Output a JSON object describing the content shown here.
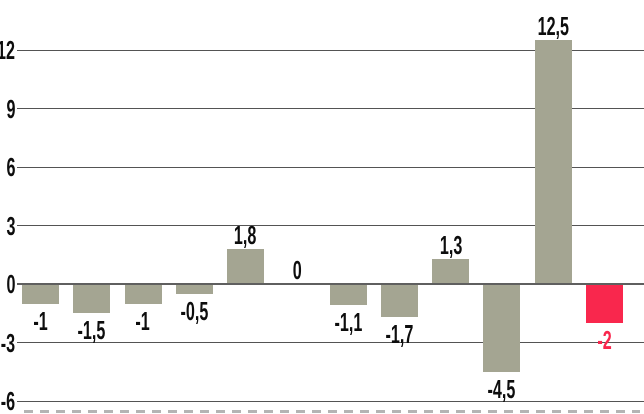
{
  "chart_data": {
    "type": "bar",
    "title": "",
    "xlabel": "",
    "ylabel": "",
    "values": [
      -1,
      -1.5,
      -1,
      -0.5,
      1.8,
      0,
      -1.1,
      -1.7,
      1.3,
      -4.5,
      12.5,
      -2
    ],
    "value_labels": [
      "-1",
      "-1,5",
      "-1",
      "-0,5",
      "1,8",
      "0",
      "-1,1",
      "-1,7",
      "1,3",
      "-4,5",
      "12,5",
      "-2"
    ],
    "highlight_index": 11,
    "y_ticks": [
      12,
      9,
      6,
      3,
      0,
      -3,
      -6
    ],
    "y_tick_labels": [
      "12",
      "9",
      "6",
      "3",
      "0",
      "-3",
      "-6"
    ],
    "ylim": [
      -6.7,
      14.6
    ],
    "grid": "horizontal",
    "legend": "none",
    "decimal_separator": ",",
    "colors": {
      "bar": "#a4a592",
      "highlight_bar": "#f9274d",
      "highlight_label": "#f9274d",
      "label_text": "#0d0d0d",
      "gridline": "#545454",
      "zero_line": "#5f5f5f",
      "background": "#ffffff"
    }
  }
}
